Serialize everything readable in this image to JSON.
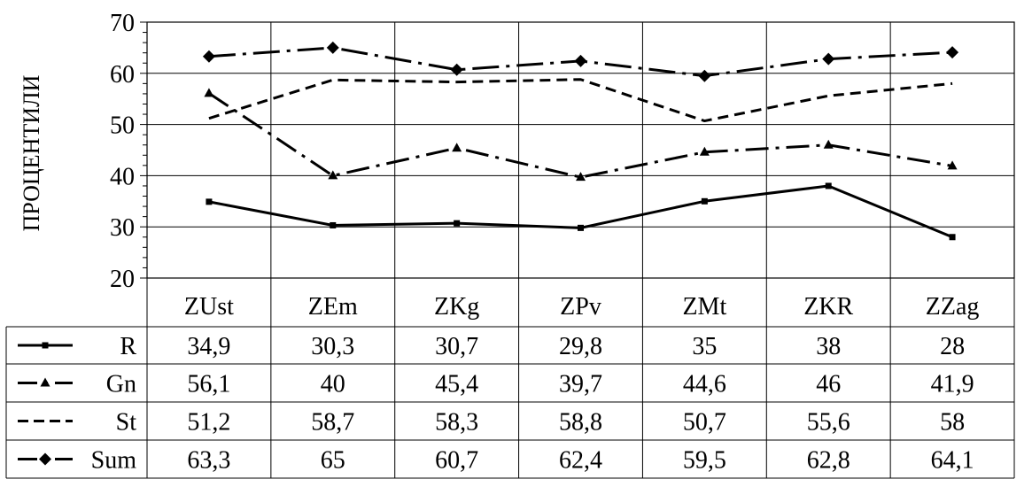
{
  "chart_data": {
    "type": "line",
    "title": "",
    "xlabel": "",
    "ylabel": "ПРОЦЕНТИЛИ",
    "ylim": [
      20,
      70
    ],
    "yticks": [
      20,
      30,
      40,
      50,
      60,
      70
    ],
    "grid": true,
    "legend": "table-left",
    "categories": [
      "ZUst",
      "ZEm",
      "ZKg",
      "ZPv",
      "ZMt",
      "ZKR",
      "ZZag"
    ],
    "series": [
      {
        "name": "R",
        "style": "solid",
        "marker": "square",
        "values": [
          34.9,
          30.3,
          30.7,
          29.8,
          35,
          38,
          28
        ],
        "labels": [
          "34,9",
          "30,3",
          "30,7",
          "29,8",
          "35",
          "38",
          "28"
        ]
      },
      {
        "name": "Gn",
        "style": "dash-dot",
        "marker": "triangle",
        "values": [
          56.1,
          40,
          45.4,
          39.7,
          44.6,
          46,
          41.9
        ],
        "labels": [
          "56,1",
          "40",
          "45,4",
          "39,7",
          "44,6",
          "46",
          "41,9"
        ]
      },
      {
        "name": "St",
        "style": "dashed",
        "marker": "none",
        "values": [
          51.2,
          58.7,
          58.3,
          58.8,
          50.7,
          55.6,
          58
        ],
        "labels": [
          "51,2",
          "58,7",
          "58,3",
          "58,8",
          "50,7",
          "55,6",
          "58"
        ]
      },
      {
        "name": "Sum",
        "style": "dash-dot-long",
        "marker": "diamond",
        "values": [
          63.3,
          65,
          60.7,
          62.4,
          59.5,
          62.8,
          64.1
        ],
        "labels": [
          "63,3",
          "65",
          "60,7",
          "62,4",
          "59,5",
          "62,8",
          "64,1"
        ]
      }
    ]
  }
}
